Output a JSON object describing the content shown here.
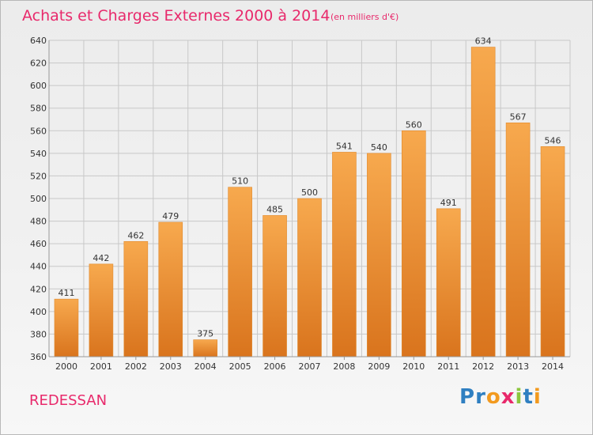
{
  "header": {
    "title": "Achats et Charges Externes 2000 à 2014",
    "subtitle": "(en milliers d'€)"
  },
  "footer": {
    "commune": "REDESSAN",
    "logo_letters": [
      "P",
      "r",
      "o",
      "x",
      "i",
      "t",
      "i"
    ]
  },
  "colors": {
    "title": "#e8296b",
    "bar_top": "#f7a94e",
    "bar_bottom": "#d9741d",
    "grid": "#c8c8c8"
  },
  "chart_data": {
    "type": "bar",
    "title": "Achats et Charges Externes 2000 à 2014",
    "subtitle": "(en milliers d'€)",
    "categories": [
      "2000",
      "2001",
      "2002",
      "2003",
      "2004",
      "2005",
      "2006",
      "2007",
      "2008",
      "2009",
      "2010",
      "2011",
      "2012",
      "2013",
      "2014"
    ],
    "values": [
      411,
      442,
      462,
      479,
      375,
      510,
      485,
      500,
      541,
      540,
      560,
      491,
      634,
      567,
      546
    ],
    "xlabel": "",
    "ylabel": "",
    "ylim": [
      360,
      640
    ],
    "yticks": [
      360,
      380,
      400,
      420,
      440,
      460,
      480,
      500,
      520,
      540,
      560,
      580,
      600,
      620,
      640
    ],
    "grid": true,
    "data_labels": true
  }
}
